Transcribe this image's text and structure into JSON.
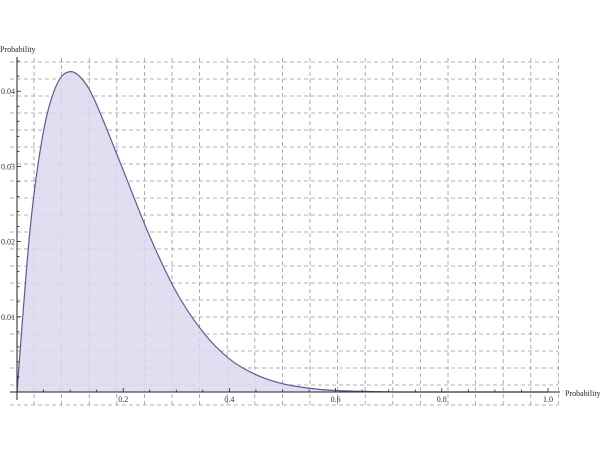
{
  "chart_data": {
    "type": "area",
    "title": "",
    "xlabel": "Probability",
    "ylabel": "Probability",
    "xlim": [
      0,
      1.0
    ],
    "ylim": [
      0,
      0.045
    ],
    "grid": true,
    "x_ticks": [
      "0.2",
      "0.4",
      "0.6",
      "0.8",
      "1.0"
    ],
    "y_ticks": [
      "0.01",
      "0.02",
      "0.03",
      "0.04"
    ],
    "colors": {
      "line": "#5c5c94",
      "fill": "#d9d9ee",
      "grid": "#9a9a9a"
    },
    "x": [
      0,
      0.025,
      0.05,
      0.075,
      0.1,
      0.125,
      0.15,
      0.2,
      0.25,
      0.3,
      0.35,
      0.4,
      0.45,
      0.5,
      0.55,
      0.6,
      0.7,
      0.8,
      0.9,
      1.0
    ],
    "y": [
      0,
      0.0219,
      0.0347,
      0.0409,
      0.0426,
      0.0414,
      0.0382,
      0.0295,
      0.0207,
      0.0133,
      0.008,
      0.0044,
      0.0023,
      0.0011,
      0.0005,
      0.0002,
      2e-05,
      0,
      0,
      0
    ]
  }
}
